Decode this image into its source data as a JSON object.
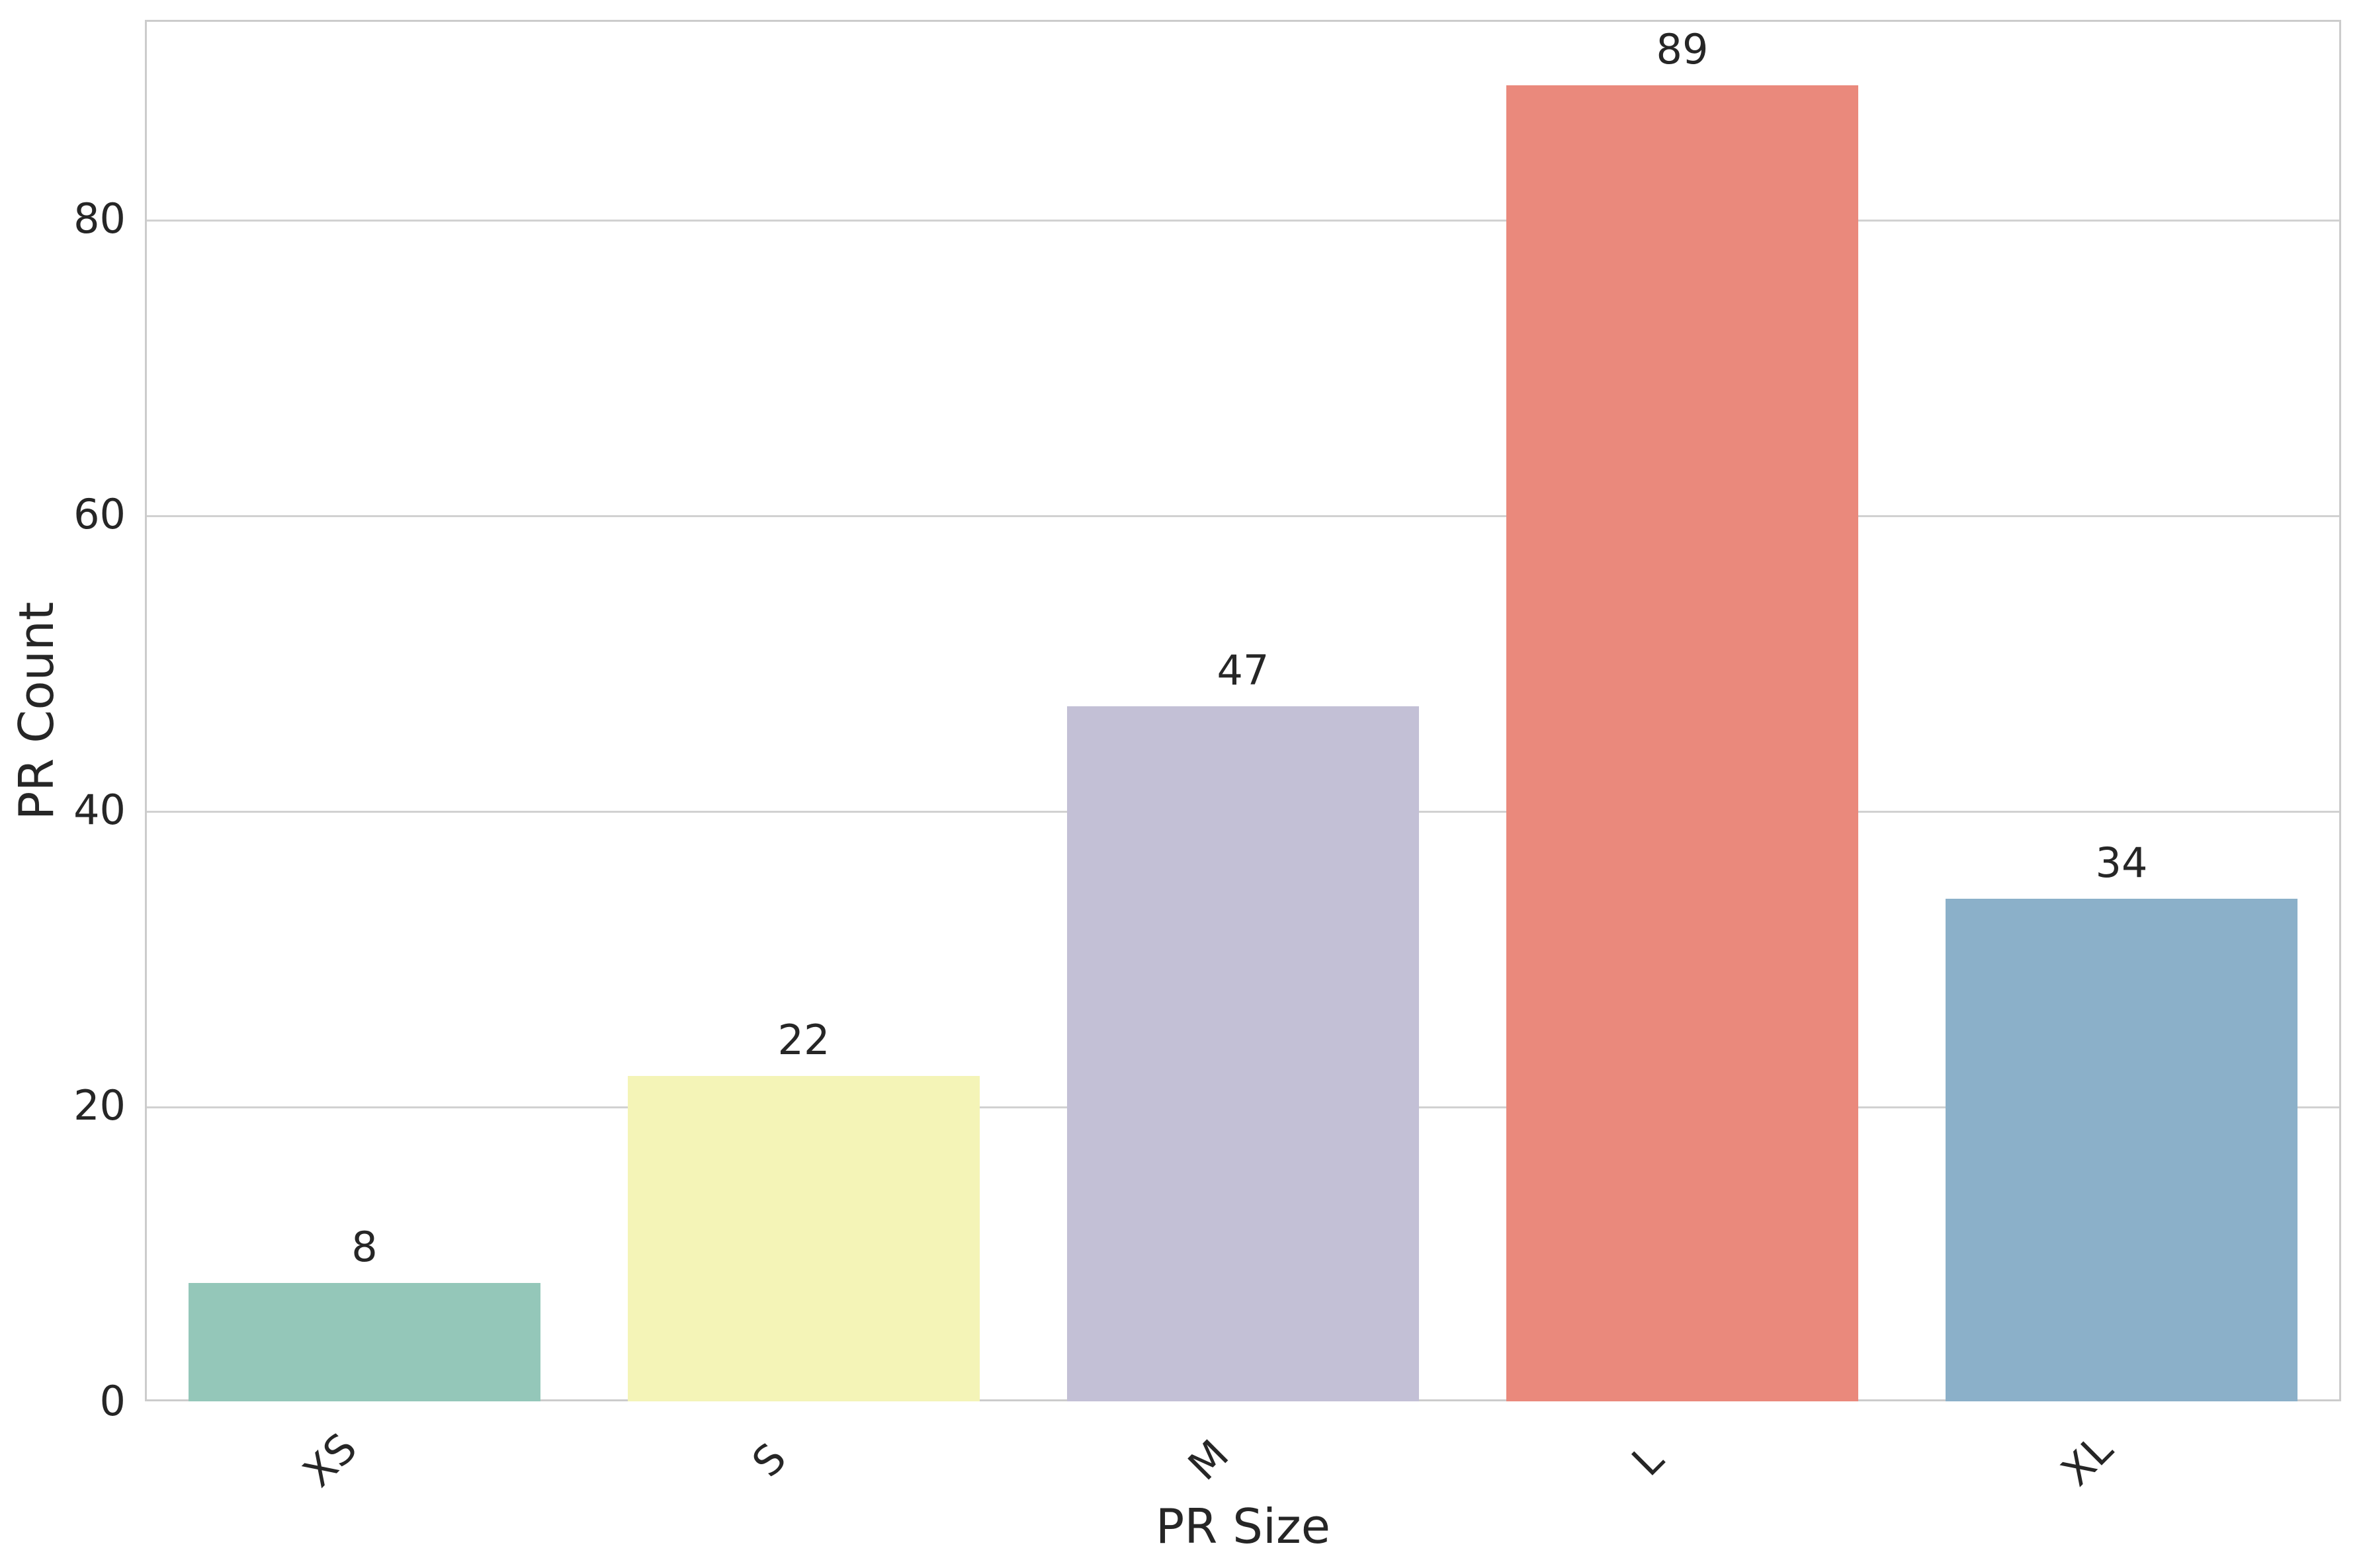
{
  "chart_data": {
    "type": "bar",
    "title": "",
    "xlabel": "PR Size",
    "ylabel": "PR Count",
    "categories": [
      "XS",
      "S",
      "M",
      "L",
      "XL"
    ],
    "values": [
      8,
      22,
      47,
      89,
      34
    ],
    "bar_value_labels": [
      "8",
      "22",
      "47",
      "89",
      "34"
    ],
    "bar_colors": [
      "#94c7b9",
      "#f4f4b7",
      "#c3c0d6",
      "#ea897c",
      "#8bb0c9"
    ],
    "yticks": [
      0,
      20,
      40,
      60,
      80
    ],
    "ylim": [
      0,
      93.45
    ],
    "xlim_slots": 5,
    "bar_width_fraction": 0.8,
    "xtick_rotation_deg": 45,
    "grid": true,
    "legend": "none"
  },
  "colors": {
    "grid": "#d1d1d1",
    "spine": "#cccccc",
    "text": "#262626",
    "background": "#ffffff"
  }
}
